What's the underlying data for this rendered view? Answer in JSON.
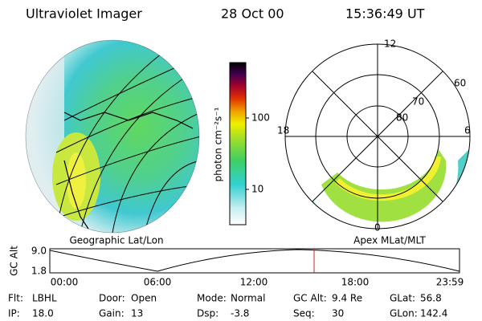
{
  "header": {
    "title": "Ultraviolet Imager",
    "date": "28 Oct 00",
    "time": "15:36:49 UT"
  },
  "geo_panel": {
    "caption": "Geographic Lat/Lon"
  },
  "colorbar": {
    "label": "photon cm⁻²s⁻¹",
    "ticks": [
      "100",
      "10"
    ]
  },
  "polar_panel": {
    "caption": "Apex MLat/MLT",
    "mlt_labels": [
      "12",
      "18",
      "6",
      "0"
    ],
    "lat_labels": [
      "60",
      "70",
      "80"
    ]
  },
  "altitude_plot": {
    "y_label": "GC Alt",
    "yticks": [
      "9.0",
      "1.8"
    ],
    "xticks": [
      "00:00",
      "06:00",
      "12:00",
      "18:00",
      "23:59"
    ]
  },
  "footer": {
    "rows": [
      [
        {
          "label": "Flt:",
          "value": "LBHL"
        },
        {
          "label": "Door:",
          "value": "Open"
        },
        {
          "label": "Mode:",
          "value": "Normal"
        },
        {
          "label": "GC Alt:",
          "value": "9.4 Re"
        },
        {
          "label": "GLat:",
          "value": "56.8"
        }
      ],
      [
        {
          "label": "IP:",
          "value": "18.0"
        },
        {
          "label": "Gain:",
          "value": "13"
        },
        {
          "label": "Dsp:",
          "value": "-3.8"
        },
        {
          "label": "Seq:",
          "value": "30"
        },
        {
          "label": "GLon:",
          "value": "142.4"
        }
      ]
    ]
  }
}
